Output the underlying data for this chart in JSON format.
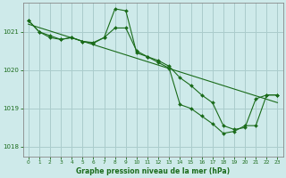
{
  "title": "Graphe pression niveau de la mer (hPa)",
  "background_color": "#ceeaea",
  "grid_color": "#aacccc",
  "line_color": "#1a6b1a",
  "marker_color": "#1a6b1a",
  "xlim": [
    -0.5,
    23.5
  ],
  "ylim": [
    1017.75,
    1021.75
  ],
  "yticks": [
    1018,
    1019,
    1020,
    1021
  ],
  "xticks": [
    0,
    1,
    2,
    3,
    4,
    5,
    6,
    7,
    8,
    9,
    10,
    11,
    12,
    13,
    14,
    15,
    16,
    17,
    18,
    19,
    20,
    21,
    22,
    23
  ],
  "series": [
    {
      "x": [
        0,
        1,
        2,
        3,
        4,
        5,
        6,
        7,
        8,
        9,
        10,
        11,
        12,
        13,
        14,
        15,
        16,
        17,
        18,
        19,
        20,
        21,
        22,
        23
      ],
      "y": [
        1021.3,
        1021.0,
        1020.85,
        1020.8,
        1020.85,
        1020.75,
        1020.7,
        1020.85,
        1021.6,
        1021.55,
        1020.45,
        1020.35,
        1020.25,
        1020.1,
        1019.8,
        1019.6,
        1019.35,
        1019.15,
        1018.55,
        1018.45,
        1018.5,
        1019.25,
        1019.35,
        1019.35
      ]
    },
    {
      "x": [
        0,
        1,
        2,
        3,
        4,
        5,
        6,
        7,
        8,
        9,
        10,
        11,
        12,
        13,
        14,
        15,
        16,
        17,
        18,
        19,
        20,
        21,
        22,
        23
      ],
      "y": [
        1021.3,
        1021.0,
        1020.9,
        1020.8,
        1020.85,
        1020.75,
        1020.72,
        1020.85,
        1021.1,
        1021.1,
        1020.5,
        1020.35,
        1020.2,
        1020.05,
        1019.1,
        1019.0,
        1018.8,
        1018.6,
        1018.35,
        1018.4,
        1018.55,
        1018.55,
        1019.35,
        1019.35
      ]
    },
    {
      "x": [
        0,
        23
      ],
      "y": [
        1021.2,
        1019.15
      ]
    }
  ]
}
